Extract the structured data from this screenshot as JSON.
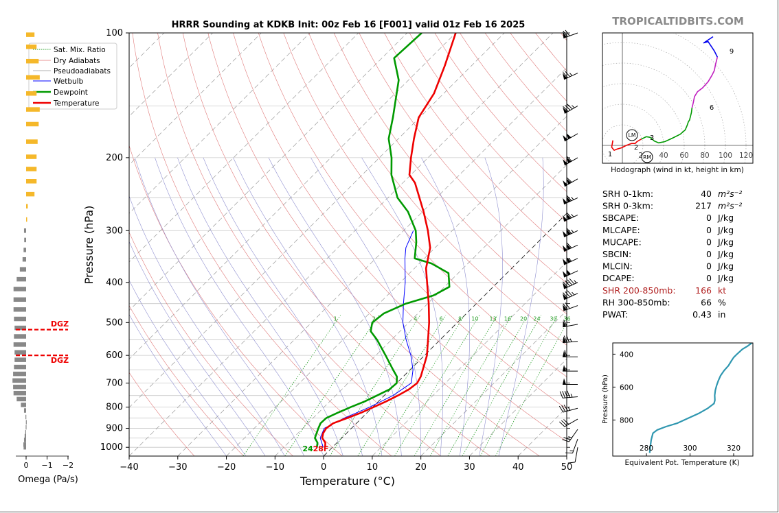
{
  "header": {
    "title": "HRRR Sounding at KDKB Init: 00z Feb 16 [F001] valid 01z Feb 16 2025",
    "watermark": "TROPICALTIDBITS.COM"
  },
  "chart_data": [
    {
      "id": "skewt",
      "type": "line",
      "xlabel": "Temperature (°C)",
      "ylabel": "Pressure (hPa)",
      "xlim": [
        -40,
        50
      ],
      "ylim": [
        1050,
        100
      ],
      "yscale": "log",
      "xticks": [
        -40,
        -30,
        -20,
        -10,
        0,
        10,
        20,
        30,
        40,
        50
      ],
      "xtick_labels": [
        "−40",
        "−30",
        "−20",
        "−10",
        "0",
        "10",
        "20",
        "30",
        "40",
        "50"
      ],
      "yticks": [
        100,
        200,
        300,
        400,
        500,
        600,
        700,
        800,
        900,
        1000
      ],
      "legend": {
        "position": "upper-left",
        "entries": [
          {
            "label": "Sat. Mix. Ratio",
            "color": "#2ca02c",
            "style": "dotted"
          },
          {
            "label": "Dry Adiabats",
            "color": "#d62728",
            "style": "solid-thin"
          },
          {
            "label": "Pseudoadiabats",
            "color": "#7f7f7f",
            "style": "solid-thin"
          },
          {
            "label": "Wetbulb",
            "color": "#0000ff",
            "style": "solid"
          },
          {
            "label": "Dewpoint",
            "color": "#009900",
            "style": "solid-thick"
          },
          {
            "label": "Temperature",
            "color": "#ee0000",
            "style": "solid-thick"
          }
        ]
      },
      "series": [
        {
          "name": "Temperature",
          "color": "#ee0000",
          "points": [
            [
              1000,
              -1.5
            ],
            [
              975,
              -2.4
            ],
            [
              950,
              -4.0
            ],
            [
              925,
              -4.8
            ],
            [
              900,
              -5.2
            ],
            [
              875,
              -4.8
            ],
            [
              850,
              -3.0
            ],
            [
              825,
              -1.2
            ],
            [
              800,
              0.2
            ],
            [
              775,
              1.6
            ],
            [
              750,
              2.8
            ],
            [
              725,
              3.8
            ],
            [
              700,
              4.2
            ],
            [
              675,
              3.6
            ],
            [
              650,
              2.6
            ],
            [
              600,
              0.5
            ],
            [
              550,
              -2.5
            ],
            [
              500,
              -5.8
            ],
            [
              450,
              -9.8
            ],
            [
              400,
              -14.5
            ],
            [
              370,
              -17.6
            ],
            [
              330,
              -21.0
            ],
            [
              300,
              -25.0
            ],
            [
              270,
              -29.8
            ],
            [
              250,
              -33.5
            ],
            [
              230,
              -37.5
            ],
            [
              220,
              -40.3
            ],
            [
              200,
              -43.5
            ],
            [
              180,
              -46.8
            ],
            [
              160,
              -50.2
            ],
            [
              140,
              -52.0
            ],
            [
              120,
              -55.5
            ],
            [
              100,
              -60.0
            ]
          ]
        },
        {
          "name": "Dewpoint",
          "color": "#009900",
          "points": [
            [
              1000,
              -3.2
            ],
            [
              975,
              -4.0
            ],
            [
              950,
              -5.5
            ],
            [
              900,
              -6.8
            ],
            [
              875,
              -7.4
            ],
            [
              850,
              -7.3
            ],
            [
              825,
              -6.0
            ],
            [
              800,
              -4.5
            ],
            [
              775,
              -2.8
            ],
            [
              750,
              -1.5
            ],
            [
              725,
              -0.2
            ],
            [
              700,
              0.0
            ],
            [
              675,
              -1.3
            ],
            [
              650,
              -3.5
            ],
            [
              600,
              -8.0
            ],
            [
              550,
              -13.0
            ],
            [
              525,
              -16.0
            ],
            [
              500,
              -17.5
            ],
            [
              475,
              -17.0
            ],
            [
              450,
              -14.5
            ],
            [
              430,
              -10.5
            ],
            [
              410,
              -9.0
            ],
            [
              380,
              -12.0
            ],
            [
              360,
              -17.5
            ],
            [
              350,
              -22.0
            ],
            [
              320,
              -25.0
            ],
            [
              300,
              -27.5
            ],
            [
              270,
              -33.0
            ],
            [
              250,
              -38.0
            ],
            [
              220,
              -44.0
            ],
            [
              200,
              -47.5
            ],
            [
              180,
              -52.0
            ],
            [
              160,
              -55.5
            ],
            [
              130,
              -62.0
            ],
            [
              115,
              -67.5
            ],
            [
              100,
              -67.0
            ]
          ]
        },
        {
          "name": "Wetbulb",
          "color": "#0000ff",
          "points": [
            [
              1000,
              -1.9
            ],
            [
              950,
              -4.4
            ],
            [
              900,
              -5.6
            ],
            [
              850,
              -3.6
            ],
            [
              800,
              -0.6
            ],
            [
              750,
              1.8
            ],
            [
              700,
              3.0
            ],
            [
              650,
              0.6
            ],
            [
              600,
              -2.8
            ],
            [
              550,
              -7.0
            ],
            [
              500,
              -11.2
            ],
            [
              450,
              -15.0
            ],
            [
              400,
              -19.0
            ],
            [
              350,
              -24.0
            ],
            [
              330,
              -26.0
            ],
            [
              300,
              -28.0
            ]
          ]
        }
      ],
      "surface_labels": {
        "dewpoint": "24",
        "temperature": "28F"
      },
      "mixing_ratio_labels": [
        "1",
        "2",
        "4",
        "6",
        "8",
        "10",
        "13",
        "16",
        "20",
        "24",
        "30",
        "36"
      ]
    },
    {
      "id": "omega",
      "type": "bar",
      "xlabel": "Omega (Pa/s)",
      "xticks": [
        0,
        -1,
        -2
      ],
      "xtick_labels": [
        "0",
        "−1",
        "−2"
      ],
      "dgz_label": "DGZ",
      "dgz_pressures": [
        520,
        600
      ],
      "bars": [
        {
          "p": 1000,
          "v": 0.12
        },
        {
          "p": 985,
          "v": 0.13
        },
        {
          "p": 960,
          "v": 0.1
        },
        {
          "p": 940,
          "v": 0.07
        },
        {
          "p": 920,
          "v": 0.04
        },
        {
          "p": 895,
          "v": 0.02
        },
        {
          "p": 870,
          "v": 0.01
        },
        {
          "p": 845,
          "v": 0.03
        },
        {
          "p": 815,
          "v": 0.1
        },
        {
          "p": 790,
          "v": 0.25
        },
        {
          "p": 765,
          "v": 0.45
        },
        {
          "p": 740,
          "v": 0.6
        },
        {
          "p": 715,
          "v": 0.62
        },
        {
          "p": 690,
          "v": 0.65
        },
        {
          "p": 665,
          "v": 0.62
        },
        {
          "p": 640,
          "v": 0.58
        },
        {
          "p": 615,
          "v": 0.55
        },
        {
          "p": 590,
          "v": 0.55
        },
        {
          "p": 565,
          "v": 0.6
        },
        {
          "p": 540,
          "v": 0.58
        },
        {
          "p": 515,
          "v": 0.55
        },
        {
          "p": 490,
          "v": 0.58
        },
        {
          "p": 465,
          "v": 0.6
        },
        {
          "p": 440,
          "v": 0.6
        },
        {
          "p": 415,
          "v": 0.6
        },
        {
          "p": 393,
          "v": 0.45
        },
        {
          "p": 372,
          "v": 0.3
        },
        {
          "p": 352,
          "v": 0.17
        },
        {
          "p": 334,
          "v": 0.12
        },
        {
          "p": 316,
          "v": 0.09
        },
        {
          "p": 300,
          "v": 0.1
        },
        {
          "p": 282,
          "v": -0.05
        },
        {
          "p": 262,
          "v": -0.08
        },
        {
          "p": 245,
          "v": -0.4
        },
        {
          "p": 228,
          "v": -0.5
        },
        {
          "p": 213,
          "v": -0.5
        },
        {
          "p": 199,
          "v": -0.5
        },
        {
          "p": 183,
          "v": -0.55
        },
        {
          "p": 166,
          "v": -0.6
        },
        {
          "p": 153,
          "v": -0.65
        },
        {
          "p": 140,
          "v": -0.5
        },
        {
          "p": 128,
          "v": -0.65
        },
        {
          "p": 117,
          "v": -0.6
        },
        {
          "p": 108,
          "v": -0.5
        },
        {
          "p": 101,
          "v": -0.4
        }
      ]
    },
    {
      "id": "hodograph",
      "type": "line",
      "xlabel": "Hodograph (wind in kt, height in km)",
      "ring_labels": [
        "20",
        "40",
        "60",
        "80",
        "100",
        "120"
      ],
      "height_labels": [
        "1",
        "2",
        "3",
        "6",
        "9"
      ],
      "markers": [
        "LM",
        "RM"
      ],
      "segments": [
        {
          "color": "#ee0000",
          "points": [
            [
              -12,
              17
            ],
            [
              -14,
              6
            ],
            [
              -10,
              1
            ],
            [
              -5,
              3
            ],
            [
              2,
              5
            ],
            [
              10,
              9
            ],
            [
              18,
              12
            ],
            [
              20,
              12
            ],
            [
              24,
              12
            ],
            [
              27,
              15
            ],
            [
              32,
              18
            ],
            [
              34,
              19
            ]
          ]
        },
        {
          "color": "#009900",
          "points": [
            [
              34,
              19
            ],
            [
              42,
              23
            ],
            [
              48,
              22
            ],
            [
              55,
              16
            ],
            [
              62,
              13
            ],
            [
              72,
              15
            ],
            [
              85,
              21
            ],
            [
              97,
              27
            ],
            [
              105,
              34
            ],
            [
              108,
              41
            ],
            [
              110,
              47
            ],
            [
              112,
              50
            ],
            [
              115,
              62
            ],
            [
              116,
              70
            ]
          ]
        },
        {
          "color": "#c020c0",
          "points": [
            [
              116,
              70
            ],
            [
              118,
              78
            ],
            [
              120,
              88
            ],
            [
              125,
              96
            ],
            [
              133,
              102
            ],
            [
              142,
              112
            ],
            [
              148,
              122
            ],
            [
              152,
              130
            ],
            [
              154,
              140
            ],
            [
              156,
              148
            ],
            [
              157,
              152
            ]
          ]
        },
        {
          "color": "#0000ee",
          "points": [
            [
              157,
              152
            ],
            [
              152,
              162
            ],
            [
              142,
              177
            ],
            [
              135,
              175
            ],
            [
              150,
              185
            ]
          ]
        }
      ]
    },
    {
      "id": "theta-e",
      "type": "line",
      "xlabel": "Equivalent Pot. Temperature (K)",
      "ylabel": "Pressure (hPa)",
      "xticks": [
        280,
        300,
        320
      ],
      "yticks": [
        400,
        600,
        800
      ],
      "series": [
        {
          "color": "#2f97b0",
          "points": [
            [
              1000,
              281.5
            ],
            [
              960,
              281.8
            ],
            [
              920,
              282.2
            ],
            [
              880,
              283.0
            ],
            [
              860,
              285.0
            ],
            [
              840,
              289.0
            ],
            [
              820,
              294.0
            ],
            [
              790,
              299.0
            ],
            [
              760,
              304.0
            ],
            [
              730,
              308.0
            ],
            [
              700,
              311.0
            ],
            [
              680,
              311.4
            ],
            [
              650,
              311.3
            ],
            [
              620,
              311.6
            ],
            [
              590,
              312.2
            ],
            [
              560,
              313.0
            ],
            [
              530,
              314.0
            ],
            [
              500,
              315.6
            ],
            [
              470,
              317.6
            ],
            [
              440,
              319.0
            ],
            [
              420,
              320.0
            ],
            [
              400,
              321.5
            ],
            [
              370,
              324.0
            ],
            [
              350,
              326.5
            ],
            [
              330,
              328.5
            ]
          ]
        }
      ]
    }
  ],
  "stats": [
    {
      "label": "SRH 0-1km:",
      "value": "40",
      "unit": "m²s⁻²",
      "highlight": false
    },
    {
      "label": "SRH 0-3km:",
      "value": "217",
      "unit": "m²s⁻²",
      "highlight": false
    },
    {
      "label": "SBCAPE:",
      "value": "0",
      "unit": "J/kg",
      "highlight": false
    },
    {
      "label": "MLCAPE:",
      "value": "0",
      "unit": "J/kg",
      "highlight": false
    },
    {
      "label": "MUCAPE:",
      "value": "0",
      "unit": "J/kg",
      "highlight": false
    },
    {
      "label": "SBCIN:",
      "value": "0",
      "unit": "J/kg",
      "highlight": false
    },
    {
      "label": "MLCIN:",
      "value": "0",
      "unit": "J/kg",
      "highlight": false
    },
    {
      "label": "DCAPE:",
      "value": "0",
      "unit": "J/kg",
      "highlight": false
    },
    {
      "label": "SHR 200-850mb:",
      "value": "166",
      "unit": "kt",
      "highlight": true
    },
    {
      "label": "RH 300-850mb:",
      "value": "66",
      "unit": "%",
      "highlight": false
    },
    {
      "label": "PWAT:",
      "value": "0.43",
      "unit": "in",
      "highlight": false
    }
  ],
  "wind_barbs": [
    {
      "p": 1000,
      "dir": 190,
      "spd": 10
    },
    {
      "p": 955,
      "dir": 200,
      "spd": 15
    },
    {
      "p": 905,
      "dir": 215,
      "spd": 25
    },
    {
      "p": 855,
      "dir": 240,
      "spd": 30
    },
    {
      "p": 805,
      "dir": 255,
      "spd": 35
    },
    {
      "p": 755,
      "dir": 265,
      "spd": 45
    },
    {
      "p": 705,
      "dir": 270,
      "spd": 50
    },
    {
      "p": 655,
      "dir": 270,
      "spd": 55
    },
    {
      "p": 605,
      "dir": 270,
      "spd": 60
    },
    {
      "p": 555,
      "dir": 265,
      "spd": 75
    },
    {
      "p": 505,
      "dir": 260,
      "spd": 60
    },
    {
      "p": 455,
      "dir": 250,
      "spd": 70
    },
    {
      "p": 425,
      "dir": 245,
      "spd": 85
    },
    {
      "p": 400,
      "dir": 245,
      "spd": 95
    },
    {
      "p": 375,
      "dir": 245,
      "spd": 100
    },
    {
      "p": 350,
      "dir": 245,
      "spd": 105
    },
    {
      "p": 325,
      "dir": 245,
      "spd": 110
    },
    {
      "p": 300,
      "dir": 245,
      "spd": 115
    },
    {
      "p": 275,
      "dir": 245,
      "spd": 115
    },
    {
      "p": 250,
      "dir": 245,
      "spd": 115
    },
    {
      "p": 225,
      "dir": 240,
      "spd": 110
    },
    {
      "p": 200,
      "dir": 240,
      "spd": 110
    },
    {
      "p": 175,
      "dir": 240,
      "spd": 100
    },
    {
      "p": 150,
      "dir": 240,
      "spd": 85
    },
    {
      "p": 125,
      "dir": 245,
      "spd": 75
    },
    {
      "p": 100,
      "dir": 250,
      "spd": 70
    }
  ]
}
